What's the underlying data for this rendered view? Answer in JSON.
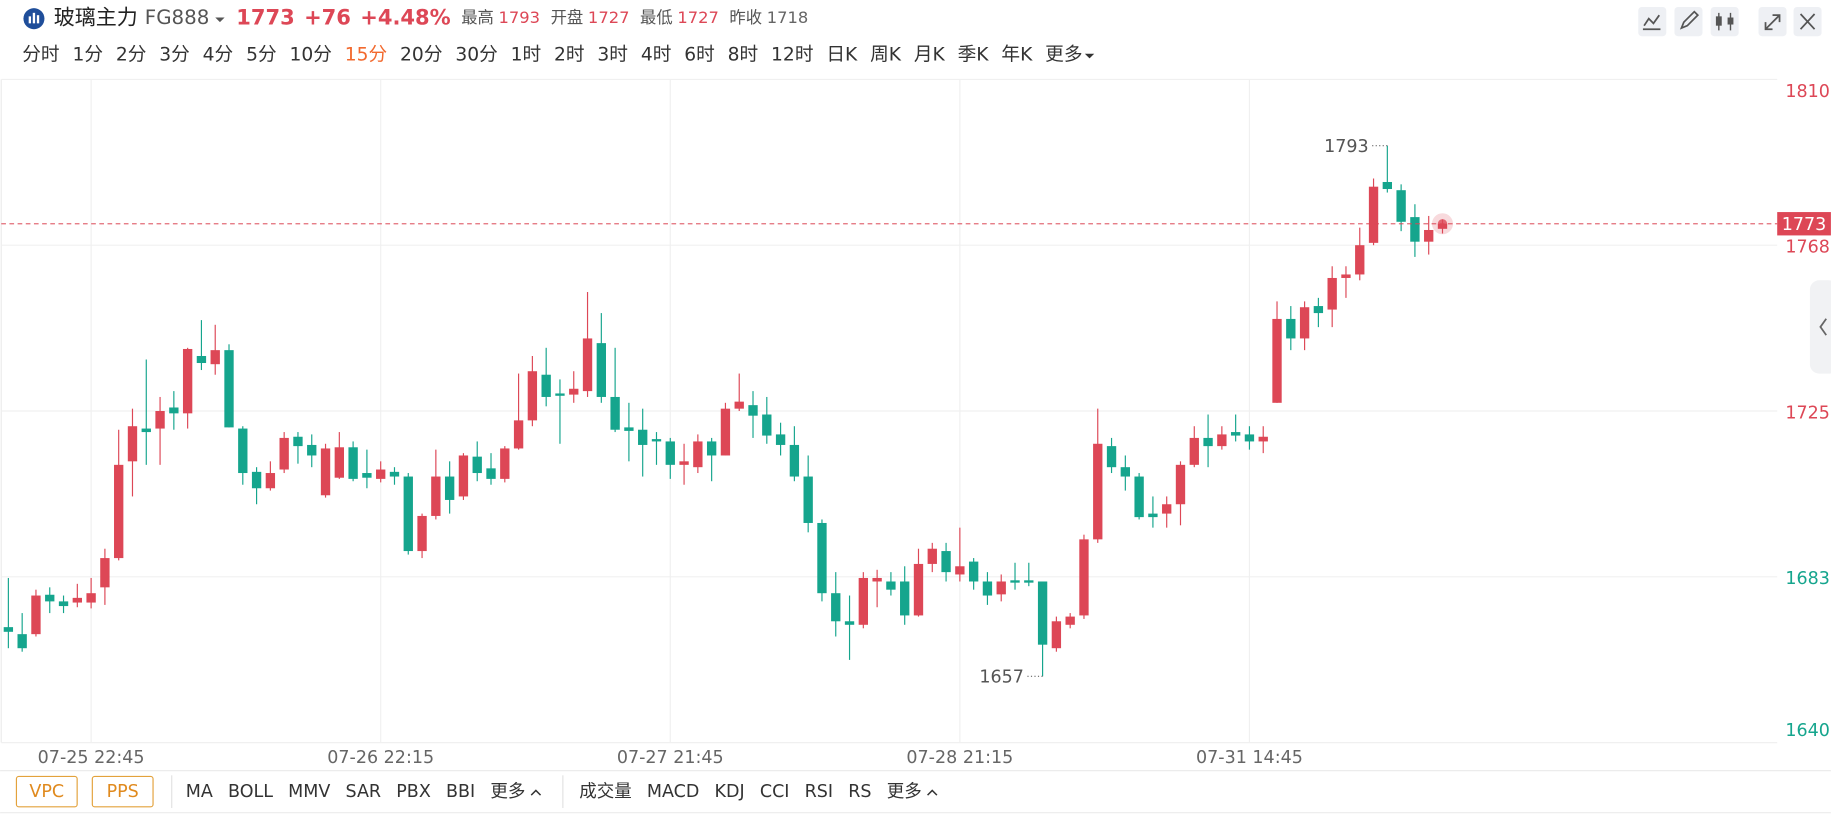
{
  "header": {
    "title": "玻璃主力",
    "code": "FG888",
    "price": 1773,
    "change": "+76",
    "change_pct": "+4.48%",
    "stats": [
      {
        "label": "最高",
        "value": 1793
      },
      {
        "label": "开盘",
        "value": 1727
      },
      {
        "label": "最低",
        "value": 1727
      },
      {
        "label": "昨收",
        "value": 1718
      }
    ],
    "reference_index": 3
  },
  "periods": {
    "items": [
      "分时",
      "1分",
      "2分",
      "3分",
      "4分",
      "5分",
      "10分",
      "15分",
      "20分",
      "30分",
      "1时",
      "2时",
      "3时",
      "4时",
      "6时",
      "8时",
      "12时",
      "日K",
      "周K",
      "月K",
      "季K",
      "年K",
      "更多"
    ],
    "selected": 7
  },
  "indicators": {
    "overlays": [
      "VPC",
      "PPS"
    ],
    "main": [
      "MA",
      "BOLL",
      "MMV",
      "SAR",
      "PBX",
      "BBI",
      "更多"
    ],
    "sub": [
      "成交量",
      "MACD",
      "KDJ",
      "CCI",
      "RSI",
      "RS",
      "更多"
    ]
  },
  "chart_data": {
    "type": "candlestick",
    "categories": [
      null,
      null,
      null,
      null,
      null,
      null,
      "07-25 22:45",
      null,
      null,
      null,
      null,
      null,
      null,
      null,
      null,
      null,
      null,
      null,
      null,
      null,
      null,
      null,
      null,
      null,
      null,
      null,
      null,
      "07-26 22:15",
      null,
      null,
      null,
      null,
      null,
      null,
      null,
      null,
      null,
      null,
      null,
      null,
      null,
      null,
      null,
      null,
      null,
      null,
      null,
      null,
      "07-27 21:45",
      null,
      null,
      null,
      null,
      null,
      null,
      null,
      null,
      null,
      null,
      null,
      null,
      null,
      null,
      null,
      null,
      null,
      null,
      null,
      null,
      "07-28 21:15",
      null,
      null,
      null,
      null,
      null,
      null,
      null,
      null,
      null,
      null,
      null,
      null,
      null,
      null,
      null,
      null,
      null,
      null,
      null,
      null,
      "07-31 14:45",
      null,
      null,
      null,
      null,
      null,
      null,
      null,
      null,
      null,
      null,
      null,
      null,
      null,
      null
    ],
    "open": [
      1669.6,
      1667.8,
      1667.8,
      1677.9,
      1676.2,
      1675.9,
      1675.9,
      1679.8,
      1687.3,
      1712.1,
      1720.5,
      1720.5,
      1725.9,
      1724.4,
      1739.1,
      1737.0,
      1740.6,
      1720.5,
      1709.4,
      1705.2,
      1710.0,
      1718.4,
      1716.3,
      1703.4,
      1707.9,
      1715.7,
      1709.1,
      1707.6,
      1709.4,
      1708.2,
      1689.1,
      1698.1,
      1708.2,
      1703.1,
      1713.3,
      1710.3,
      1707.6,
      1715.4,
      1722.6,
      1734.3,
      1729.5,
      1729.2,
      1730.1,
      1742.4,
      1728.6,
      1720.8,
      1720.2,
      1717.8,
      1717.2,
      1711.2,
      1710.6,
      1717.2,
      1713.6,
      1725.6,
      1726.5,
      1724.1,
      1719.0,
      1716.3,
      1708.2,
      1696.3,
      1678.3,
      1671.1,
      1670.2,
      1681.3,
      1681.3,
      1681.3,
      1672.6,
      1685.8,
      1689.1,
      1683.1,
      1686.4,
      1681.3,
      1678.0,
      1681.6,
      1681.6,
      1681.3,
      1664.2,
      1670.2,
      1672.6,
      1692.1,
      1716.0,
      1710.6,
      1708.2,
      1698.7,
      1698.7,
      1701.1,
      1711.2,
      1718.1,
      1716.0,
      1719.6,
      1719.0,
      1717.2,
      1727.1,
      1748.6,
      1743.6,
      1751.9,
      1751.0,
      1759.1,
      1760.0,
      1768.1,
      1783.7,
      1781.6,
      1774.7,
      1768.4,
      1771.7
    ],
    "high": [
      1682.2,
      1673.2,
      1679.2,
      1679.8,
      1677.7,
      1680.7,
      1682.2,
      1689.7,
      1720.2,
      1725.6,
      1738.2,
      1728.6,
      1730.1,
      1741.2,
      1748.3,
      1747.1,
      1742.1,
      1721.1,
      1710.6,
      1712.1,
      1719.6,
      1719.6,
      1719.0,
      1716.6,
      1719.6,
      1717.2,
      1715.1,
      1712.1,
      1710.6,
      1709.1,
      1698.7,
      1715.1,
      1712.1,
      1714.2,
      1717.2,
      1714.2,
      1716.0,
      1734.6,
      1739.1,
      1741.2,
      1733.1,
      1735.2,
      1755.5,
      1750.1,
      1741.2,
      1727.1,
      1725.6,
      1719.6,
      1718.1,
      1716.6,
      1719.0,
      1718.1,
      1727.1,
      1734.6,
      1730.1,
      1728.6,
      1722.0,
      1721.1,
      1713.6,
      1697.2,
      1683.7,
      1677.7,
      1683.7,
      1684.3,
      1683.7,
      1685.2,
      1689.7,
      1691.2,
      1691.2,
      1695.1,
      1687.3,
      1683.7,
      1683.1,
      1686.1,
      1686.1,
      1681.3,
      1672.3,
      1673.2,
      1693.3,
      1725.6,
      1718.1,
      1713.6,
      1709.1,
      1703.1,
      1703.1,
      1712.1,
      1721.1,
      1724.1,
      1721.1,
      1724.1,
      1721.1,
      1721.1,
      1753.1,
      1751.9,
      1753.1,
      1754.0,
      1762.1,
      1762.1,
      1772.0,
      1784.6,
      1793,
      1783.1,
      1778.0,
      1775.0,
      1774.1
    ],
    "low": [
      1664.2,
      1663.3,
      1667.2,
      1673.2,
      1673.2,
      1674.7,
      1674.4,
      1675.3,
      1686.7,
      1703.1,
      1711.2,
      1711.2,
      1720.2,
      1720.5,
      1735.5,
      1734.3,
      1720.8,
      1706.1,
      1701.1,
      1704.6,
      1709.1,
      1711.5,
      1710.6,
      1702.8,
      1707.6,
      1707.0,
      1705.2,
      1706.7,
      1706.1,
      1688.2,
      1687.3,
      1697.2,
      1698.7,
      1702.2,
      1707.0,
      1706.1,
      1706.7,
      1715.1,
      1721.1,
      1726.2,
      1716.6,
      1727.1,
      1728.6,
      1727.1,
      1719.6,
      1712.1,
      1708.2,
      1711.2,
      1707.6,
      1706.1,
      1709.1,
      1707.0,
      1713.6,
      1725.0,
      1718.1,
      1716.6,
      1713.6,
      1707.0,
      1693.9,
      1676.2,
      1667.2,
      1661.2,
      1669.3,
      1674.7,
      1677.7,
      1670.2,
      1672.3,
      1683.7,
      1681.3,
      1681.3,
      1679.2,
      1675.3,
      1676.2,
      1679.2,
      1680.1,
      1657,
      1663.3,
      1669.3,
      1671.7,
      1691.2,
      1709.1,
      1704.6,
      1697.2,
      1695.1,
      1695.1,
      1695.7,
      1710.6,
      1710.6,
      1715.1,
      1717.2,
      1715.1,
      1714.2,
      1727.1,
      1740.6,
      1740.6,
      1746.5,
      1746.5,
      1754.0,
      1758.5,
      1767.5,
      1781.0,
      1771.1,
      1764.5,
      1765.1,
      1770.5
    ],
    "close": [
      1668.4,
      1664.2,
      1677.7,
      1676.2,
      1675.0,
      1677.1,
      1678.3,
      1687.3,
      1711.2,
      1721.1,
      1719.6,
      1725.0,
      1724.4,
      1740.9,
      1737.3,
      1740.6,
      1720.8,
      1709.1,
      1705.2,
      1709.1,
      1718.1,
      1716.0,
      1713.6,
      1715.4,
      1715.7,
      1707.6,
      1707.9,
      1710.0,
      1708.2,
      1689.1,
      1698.1,
      1708.2,
      1702.2,
      1713.6,
      1709.1,
      1707.6,
      1715.4,
      1722.6,
      1735.2,
      1728.6,
      1728.9,
      1730.7,
      1743.6,
      1728.6,
      1720.2,
      1719.9,
      1716.3,
      1717.2,
      1711.2,
      1712.1,
      1717.2,
      1713.6,
      1725.6,
      1727.4,
      1723.8,
      1718.7,
      1716.3,
      1708.2,
      1696.3,
      1678.3,
      1671.1,
      1670.2,
      1682.2,
      1682.2,
      1679.2,
      1672.6,
      1685.8,
      1689.7,
      1683.7,
      1685.2,
      1681.3,
      1677.7,
      1681.3,
      1681.0,
      1681.0,
      1665.1,
      1671.1,
      1672.3,
      1692.1,
      1716.6,
      1710.6,
      1708.2,
      1697.8,
      1697.8,
      1701.1,
      1711.2,
      1718.1,
      1716.0,
      1719.0,
      1718.7,
      1717.2,
      1718.4,
      1748.6,
      1743.6,
      1751.6,
      1750.1,
      1759.1,
      1760.0,
      1767.5,
      1782.5,
      1781.9,
      1773.5,
      1768.4,
      1771.4,
      1773
    ],
    "up_color": "#dd4756",
    "down_color": "#15a58d",
    "ylim": [
      1640,
      1810
    ],
    "yticks": [
      1640,
      {
        "value": 1682.5,
        "label": "1683"
      },
      1725,
      {
        "value": 1767.5,
        "label": "1768"
      },
      1810
    ],
    "grid": true,
    "last_price": 1773,
    "max_label": 1793,
    "min_label": 1657
  }
}
